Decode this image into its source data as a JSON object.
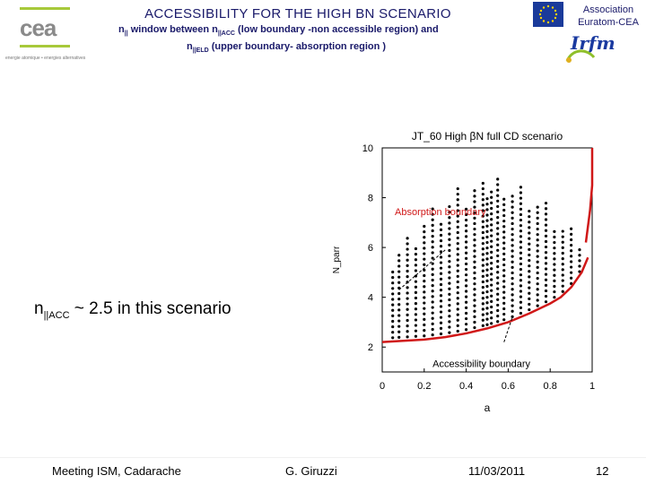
{
  "header": {
    "title": "ACCESSIBILITY FOR THE HIGH BN SCENARIO",
    "subtitle_line1_prefix": "n",
    "subtitle_line1_sub1": "||",
    "subtitle_line1_mid": " window between  n",
    "subtitle_line1_sub2": "||ACC",
    "subtitle_line1_suffix": " (low boundary -non accessible region) and",
    "subtitle_line2_prefix": "n",
    "subtitle_line2_sub": "||ELD",
    "subtitle_line2_suffix": " (upper boundary-  absorption region )",
    "association": "Association Euratom-CEA",
    "cea_logo_text": "cea",
    "cea_tagline": "energie atomique • energies alternatives",
    "irfm_logo_text": "Irfm"
  },
  "callout": {
    "prefix": "n",
    "sub": "||ACC",
    "suffix": " ~ 2.5 in this scenario"
  },
  "chart_data": {
    "type": "scatter",
    "title": "JT_60 High βN full CD scenario",
    "xlabel": "a",
    "ylabel": "N_parr",
    "xlim": [
      0,
      1
    ],
    "ylim": [
      1,
      10
    ],
    "xticks": [
      "0",
      "0.2",
      "0.4",
      "0.6",
      "0.8",
      "1"
    ],
    "yticks": [
      "2",
      "4",
      "6",
      "8",
      "10"
    ],
    "annotations": [
      "Absorption boundary",
      "Accessibility boundary"
    ],
    "accessibility_curve": {
      "x": [
        0,
        0.1,
        0.2,
        0.3,
        0.4,
        0.5,
        0.6,
        0.7,
        0.8,
        0.85,
        0.9,
        0.95,
        0.98
      ],
      "y": [
        2.2,
        2.25,
        2.3,
        2.4,
        2.55,
        2.75,
        3.0,
        3.35,
        3.75,
        4.0,
        4.4,
        5.0,
        5.6
      ]
    },
    "absorption_curve": {
      "x": [
        0.97,
        0.99,
        1.0,
        1.0
      ],
      "y": [
        6.2,
        7.5,
        8.5,
        10
      ]
    },
    "scatter_columns_x": [
      0.05,
      0.08,
      0.12,
      0.16,
      0.2,
      0.24,
      0.28,
      0.32,
      0.36,
      0.4,
      0.44,
      0.48,
      0.5,
      0.52,
      0.55,
      0.58,
      0.62,
      0.66,
      0.7,
      0.74,
      0.78,
      0.82,
      0.86,
      0.9,
      0.94
    ]
  },
  "footer": {
    "meeting": "Meeting ISM, Cadarache",
    "author": "G. Giruzzi",
    "date": "11/03/2011",
    "page": "12"
  }
}
